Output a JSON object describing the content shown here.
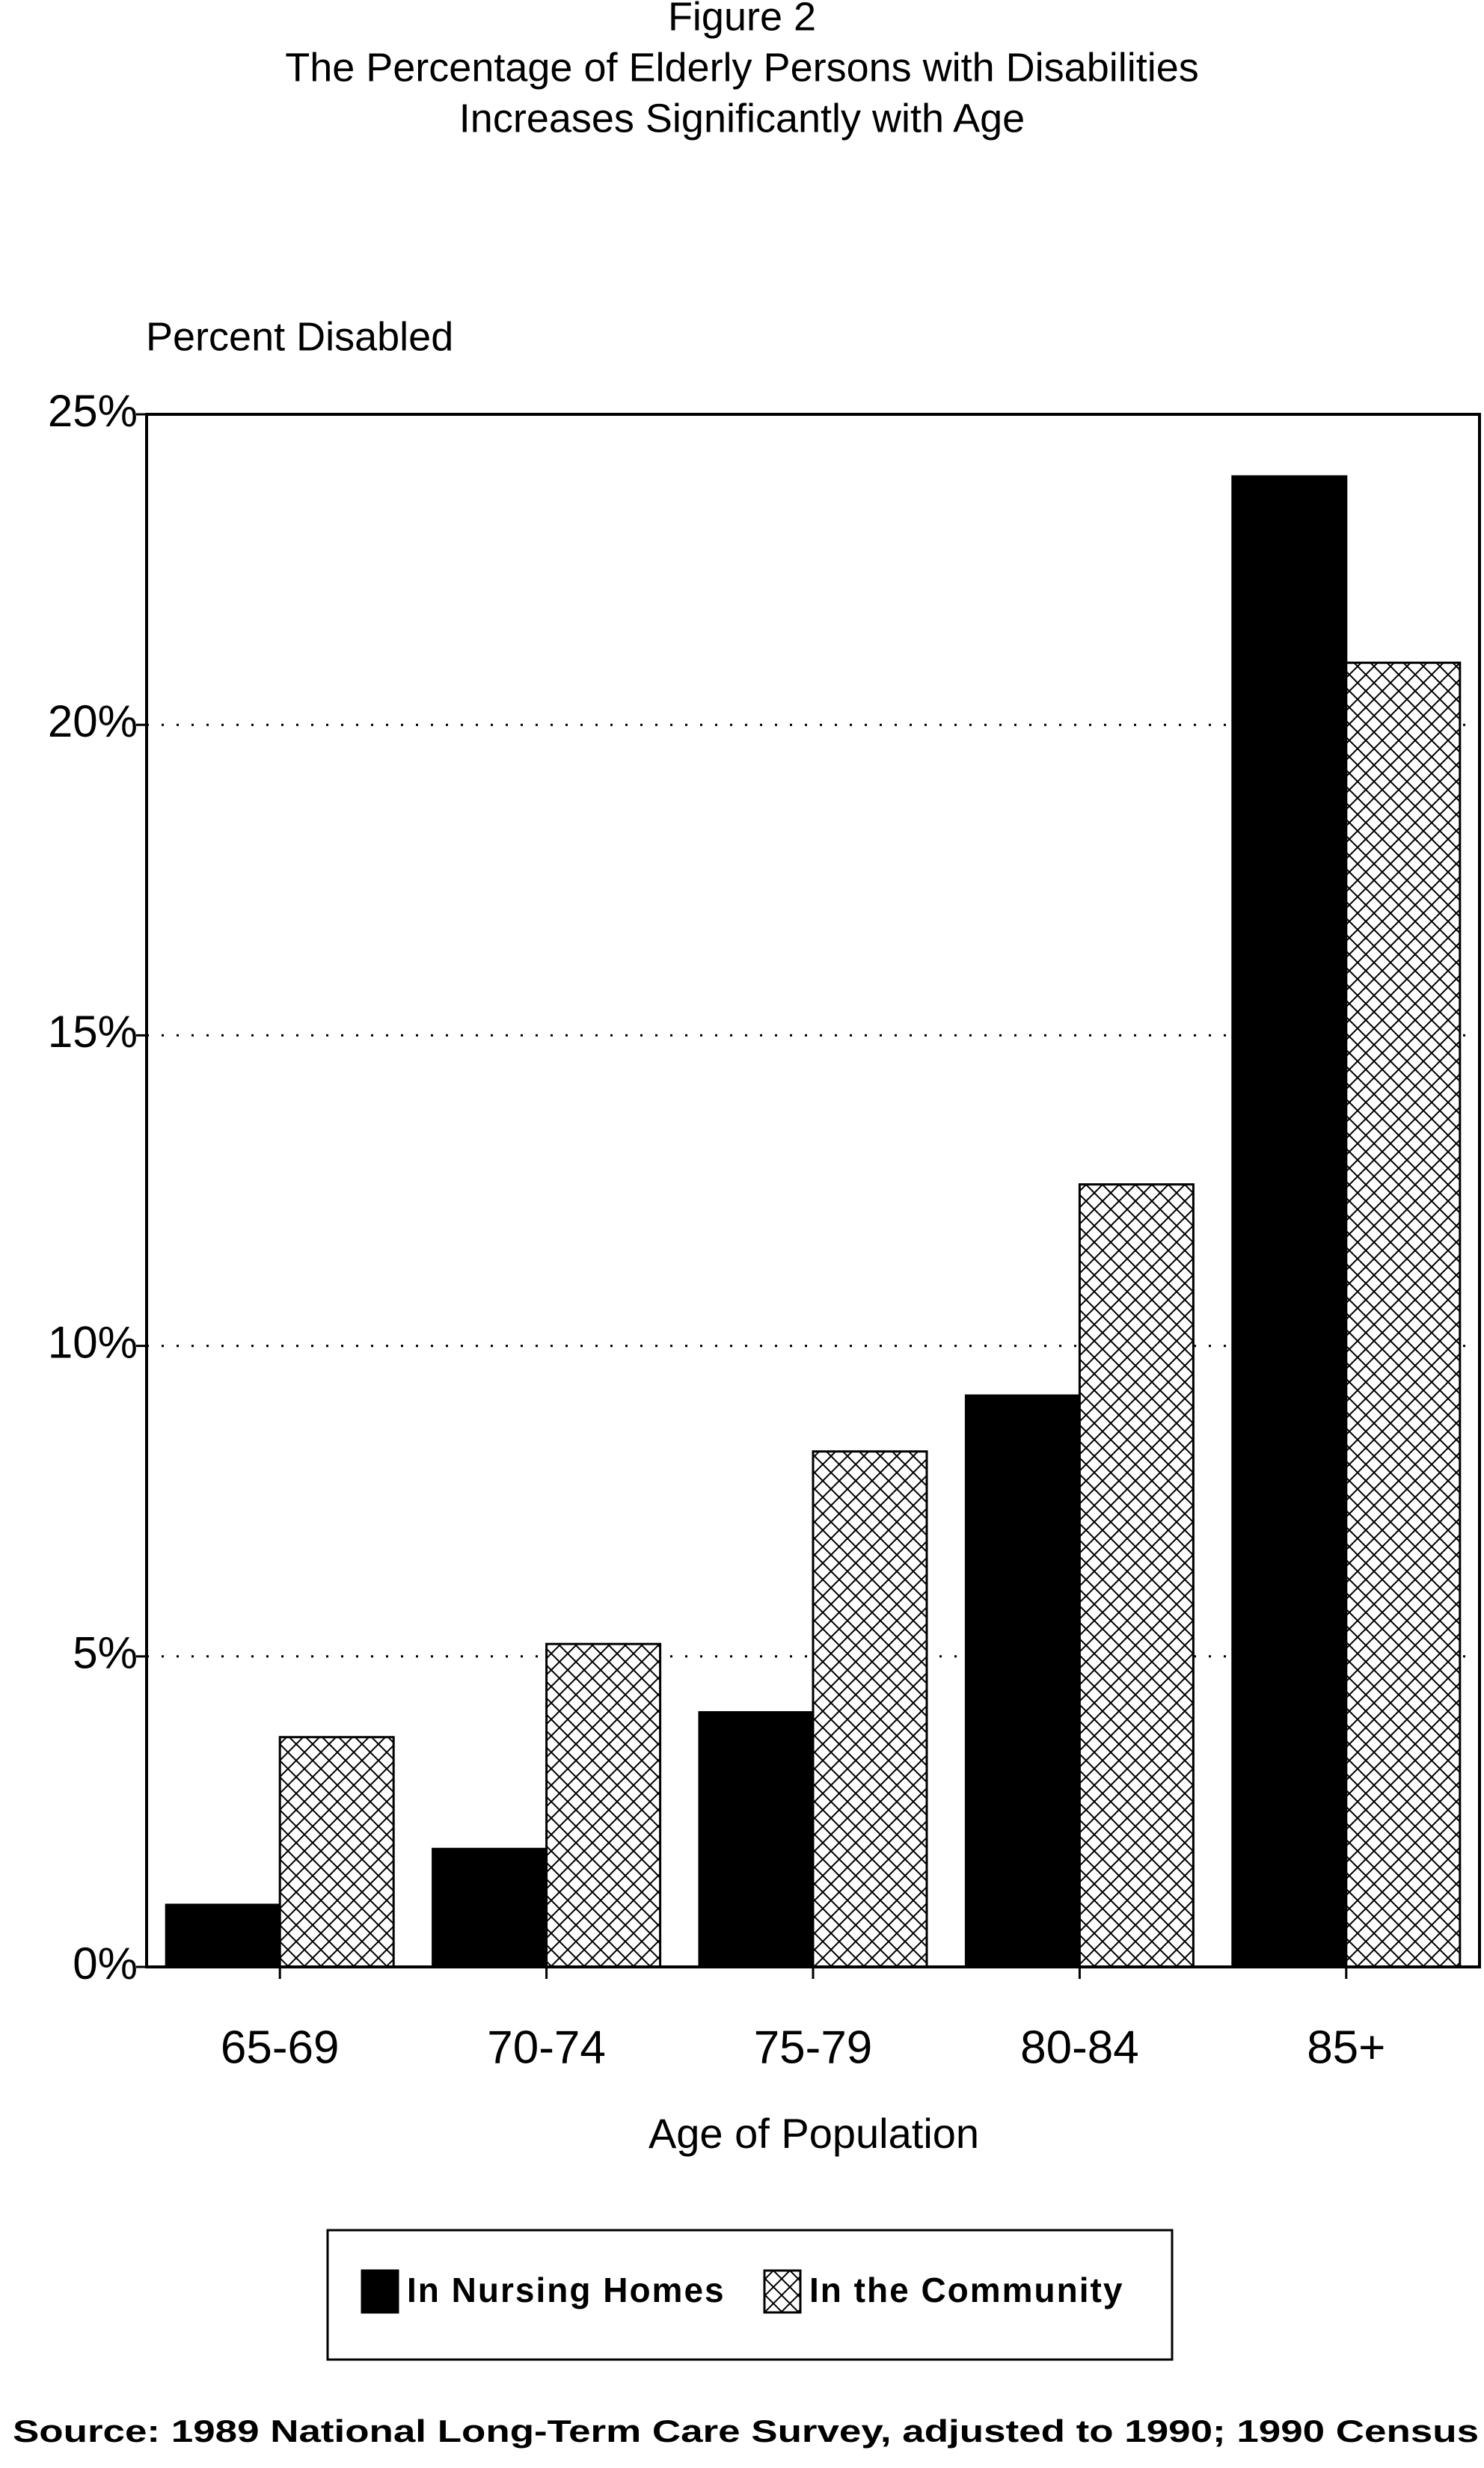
{
  "chart_data": {
    "type": "bar",
    "title": [
      "Figure 2",
      "The Percentage of Elderly Persons with Disabilities",
      "Increases Significantly with Age"
    ],
    "y_label": "Percent Disabled",
    "x_label": "Age of Population",
    "source": "Source:  1989 National Long-Term Care Survey, adjusted to 1990; 1990 Census",
    "categories": [
      "65-69",
      "70-74",
      "75-79",
      "80-84",
      "85+"
    ],
    "series": [
      {
        "name": "In Nursing Homes",
        "color": "#000000",
        "pattern": "solid",
        "values": [
          1.0,
          1.9,
          4.1,
          9.2,
          24.0
        ]
      },
      {
        "name": "In the Community",
        "color": "#000000",
        "pattern": "crosshatch",
        "values": [
          3.7,
          5.2,
          8.3,
          12.6,
          21.0
        ]
      }
    ],
    "ylim": [
      0,
      25
    ],
    "yticks": [
      {
        "value": 0,
        "label": "0%"
      },
      {
        "value": 5,
        "label": "5%"
      },
      {
        "value": 10,
        "label": "10%"
      },
      {
        "value": 15,
        "label": "15%"
      },
      {
        "value": 20,
        "label": "20%"
      },
      {
        "value": 25,
        "label": "25%"
      }
    ],
    "grid": true,
    "legend": "bottom"
  }
}
